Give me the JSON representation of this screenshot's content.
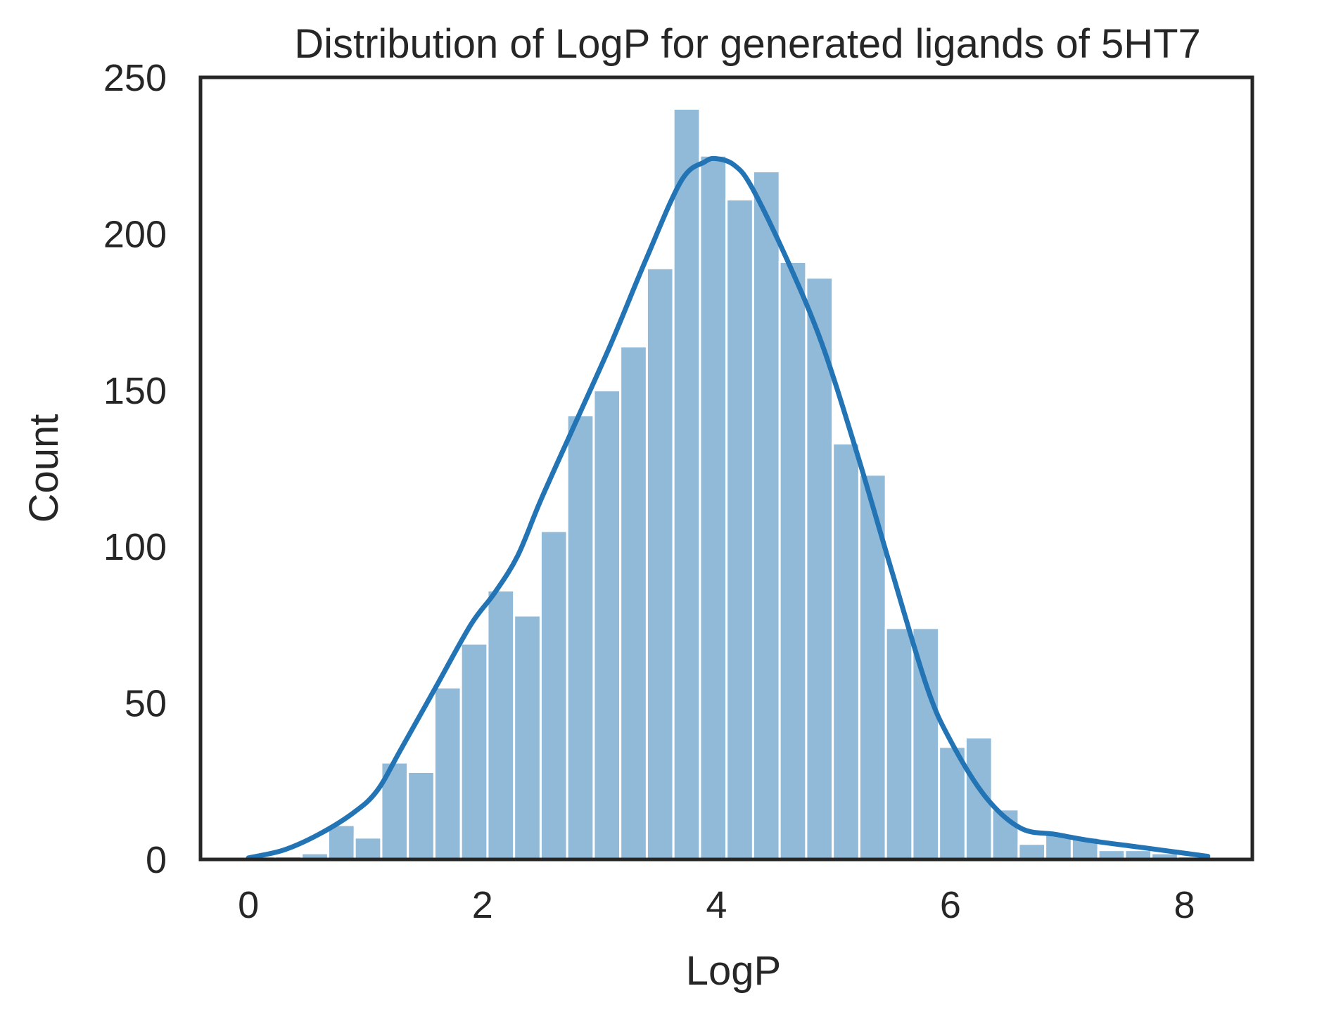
{
  "chart_data": {
    "type": "bar",
    "title": "Distribution of LogP for generated ligands of 5HT7",
    "xlabel": "LogP",
    "ylabel": "Count",
    "xlim": [
      -0.41,
      8.58
    ],
    "ylim": [
      0,
      250
    ],
    "xticks": [
      0,
      2,
      4,
      6,
      8
    ],
    "yticks": [
      0,
      50,
      100,
      150,
      200,
      250
    ],
    "grid": false,
    "legend": "none",
    "bin_edges": [
      0.0,
      0.227,
      0.454,
      0.681,
      0.908,
      1.135,
      1.362,
      1.589,
      1.816,
      2.043,
      2.27,
      2.497,
      2.724,
      2.951,
      3.178,
      3.405,
      3.632,
      3.859,
      4.086,
      4.313,
      4.54,
      4.767,
      4.994,
      5.221,
      5.448,
      5.675,
      5.902,
      6.129,
      6.356,
      6.583,
      6.81,
      7.037,
      7.264,
      7.491,
      7.718,
      7.945,
      8.172
    ],
    "values": [
      1,
      1,
      2,
      11,
      7,
      31,
      28,
      55,
      69,
      86,
      78,
      105,
      142,
      150,
      164,
      189,
      240,
      225,
      211,
      220,
      191,
      186,
      133,
      123,
      74,
      74,
      36,
      39,
      16,
      5,
      8,
      7,
      3,
      3,
      2,
      1
    ],
    "kde": {
      "x": [
        0.0,
        0.3,
        0.6,
        0.9,
        1.1,
        1.3,
        1.6,
        1.9,
        2.1,
        2.3,
        2.5,
        2.8,
        3.1,
        3.4,
        3.7,
        3.9,
        4.0,
        4.15,
        4.3,
        4.6,
        4.9,
        5.2,
        5.5,
        5.8,
        6.0,
        6.3,
        6.6,
        6.9,
        7.2,
        7.6,
        8.0,
        8.2
      ],
      "y": [
        0.5,
        3,
        8,
        15,
        22,
        35,
        55,
        75,
        85,
        97,
        115,
        140,
        165,
        192,
        217,
        223,
        224,
        222,
        215,
        192,
        165,
        130,
        92,
        55,
        38,
        20,
        10,
        8,
        6,
        4,
        2,
        1
      ]
    },
    "bar_color": "#91bad9",
    "bar_edge_color": "#ffffff",
    "line_color": "#2374b4",
    "axis_color": "#262626"
  }
}
